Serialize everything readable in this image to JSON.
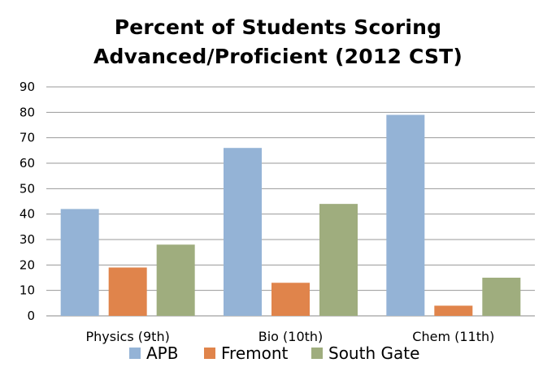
{
  "chart_data": {
    "type": "bar",
    "title_line1": "Percent of Students Scoring",
    "title_line2": "Advanced/Proficient (2012 CST)",
    "categories": [
      "Physics (9th)",
      "Bio (10th)",
      "Chem (11th)"
    ],
    "series": [
      {
        "name": "APB",
        "values": [
          42,
          66,
          79
        ],
        "color": "#94B3D6"
      },
      {
        "name": "Fremont",
        "values": [
          19,
          13,
          4
        ],
        "color": "#E0844B"
      },
      {
        "name": "South Gate",
        "values": [
          28,
          44,
          15
        ],
        "color": "#9FAD7E"
      }
    ],
    "yticks": [
      "0",
      "10",
      "20",
      "30",
      "40",
      "50",
      "60",
      "70",
      "80",
      "90"
    ],
    "ylim": [
      0,
      90
    ],
    "grid": true,
    "legend_position": "bottom",
    "xlabel": "",
    "ylabel": ""
  }
}
